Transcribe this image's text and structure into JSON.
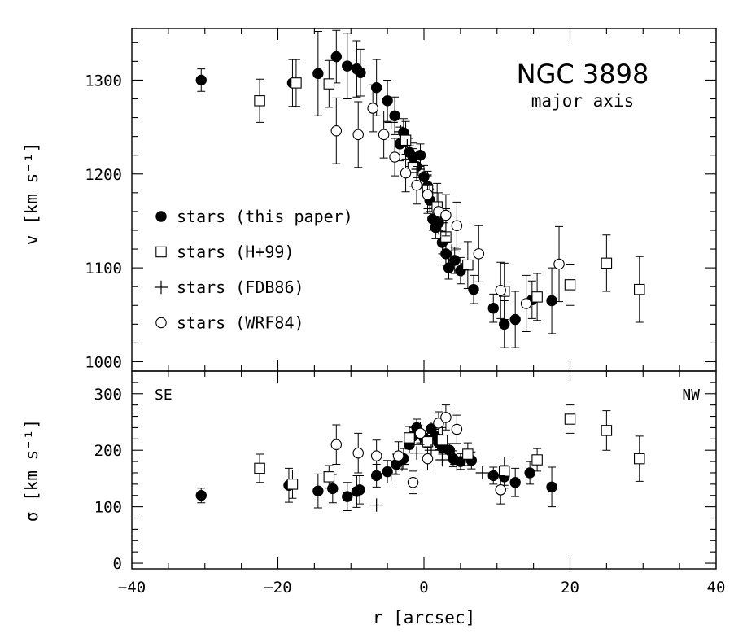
{
  "chart_data": [
    {
      "id": "velocity",
      "type": "scatter",
      "title": "NGC 3898",
      "subtitle": "major axis",
      "ylabel": "v [km s⁻¹]",
      "xlabel": "",
      "xlim": [
        -40,
        40
      ],
      "ylim": [
        990,
        1355
      ],
      "yticks": [
        1000,
        1100,
        1200,
        1300
      ],
      "xticks": [
        -40,
        -20,
        0,
        20,
        40
      ],
      "series": [
        {
          "name": "stars (this paper)",
          "marker": "filled-circle",
          "points": [
            {
              "x": -30.5,
              "y": 1300,
              "err": 12
            },
            {
              "x": -18.0,
              "y": 1297,
              "err": 25
            },
            {
              "x": -14.5,
              "y": 1307,
              "err": 45
            },
            {
              "x": -12.0,
              "y": 1325,
              "err": 28
            },
            {
              "x": -10.5,
              "y": 1315,
              "err": 35
            },
            {
              "x": -9.2,
              "y": 1312,
              "err": 30
            },
            {
              "x": -8.7,
              "y": 1308,
              "err": 25
            },
            {
              "x": -6.5,
              "y": 1292,
              "err": 30
            },
            {
              "x": -5.0,
              "y": 1278,
              "err": 22
            },
            {
              "x": -4.0,
              "y": 1262,
              "err": 20
            },
            {
              "x": -3.3,
              "y": 1232,
              "err": 18
            },
            {
              "x": -2.8,
              "y": 1244,
              "err": 15
            },
            {
              "x": -2.0,
              "y": 1223,
              "err": 15
            },
            {
              "x": -1.5,
              "y": 1218,
              "err": 15
            },
            {
              "x": -1.0,
              "y": 1208,
              "err": 12
            },
            {
              "x": -0.5,
              "y": 1220,
              "err": 12
            },
            {
              "x": 0.0,
              "y": 1197,
              "err": 12
            },
            {
              "x": 0.5,
              "y": 1187,
              "err": 12
            },
            {
              "x": 0.8,
              "y": 1172,
              "err": 12
            },
            {
              "x": 1.2,
              "y": 1152,
              "err": 12
            },
            {
              "x": 1.6,
              "y": 1143,
              "err": 12
            },
            {
              "x": 2.0,
              "y": 1148,
              "err": 12
            },
            {
              "x": 2.5,
              "y": 1127,
              "err": 12
            },
            {
              "x": 3.0,
              "y": 1115,
              "err": 12
            },
            {
              "x": 3.4,
              "y": 1100,
              "err": 12
            },
            {
              "x": 4.2,
              "y": 1108,
              "err": 14
            },
            {
              "x": 5.0,
              "y": 1097,
              "err": 14
            },
            {
              "x": 6.8,
              "y": 1077,
              "err": 15
            },
            {
              "x": 9.5,
              "y": 1057,
              "err": 15
            },
            {
              "x": 11.0,
              "y": 1040,
              "err": 25
            },
            {
              "x": 12.5,
              "y": 1045,
              "err": 30
            },
            {
              "x": 14.8,
              "y": 1066,
              "err": 20
            },
            {
              "x": 17.5,
              "y": 1065,
              "err": 35
            }
          ]
        },
        {
          "name": "stars (H+99)",
          "marker": "open-square",
          "points": [
            {
              "x": -22.5,
              "y": 1278,
              "err": 23
            },
            {
              "x": -17.5,
              "y": 1297,
              "err": 25
            },
            {
              "x": -13.0,
              "y": 1296,
              "err": 25
            },
            {
              "x": -2.5,
              "y": 1236,
              "err": 20
            },
            {
              "x": -1.5,
              "y": 1207,
              "err": 20
            },
            {
              "x": 0.5,
              "y": 1183,
              "err": 20
            },
            {
              "x": 1.8,
              "y": 1165,
              "err": 25
            },
            {
              "x": 3.0,
              "y": 1133,
              "err": 30
            },
            {
              "x": 6.0,
              "y": 1103,
              "err": 25
            },
            {
              "x": 11.0,
              "y": 1075,
              "err": 30
            },
            {
              "x": 15.5,
              "y": 1069,
              "err": 25
            },
            {
              "x": 20.0,
              "y": 1082,
              "err": 22
            },
            {
              "x": 25.0,
              "y": 1105,
              "err": 30
            },
            {
              "x": 29.5,
              "y": 1077,
              "err": 35
            }
          ]
        },
        {
          "name": "stars (FDB86)",
          "marker": "plus",
          "points": [
            {
              "x": -4.5,
              "y": 1255,
              "err": 0
            },
            {
              "x": -3.2,
              "y": 1245,
              "err": 0
            },
            {
              "x": -2.3,
              "y": 1230,
              "err": 0
            },
            {
              "x": -0.8,
              "y": 1205,
              "err": 0
            },
            {
              "x": 0.8,
              "y": 1180,
              "err": 0
            },
            {
              "x": 2.3,
              "y": 1148,
              "err": 0
            },
            {
              "x": 3.8,
              "y": 1118,
              "err": 0
            },
            {
              "x": 5.2,
              "y": 1098,
              "err": 0
            }
          ]
        },
        {
          "name": "stars (WRF84)",
          "marker": "open-circle",
          "points": [
            {
              "x": -12.0,
              "y": 1246,
              "err": 35
            },
            {
              "x": -9.0,
              "y": 1242,
              "err": 35
            },
            {
              "x": -7.0,
              "y": 1270,
              "err": 25
            },
            {
              "x": -5.5,
              "y": 1242,
              "err": 25
            },
            {
              "x": -4.0,
              "y": 1218,
              "err": 20
            },
            {
              "x": -2.5,
              "y": 1201,
              "err": 20
            },
            {
              "x": -1.0,
              "y": 1188,
              "err": 20
            },
            {
              "x": 0.5,
              "y": 1178,
              "err": 20
            },
            {
              "x": 2.0,
              "y": 1160,
              "err": 20
            },
            {
              "x": 3.0,
              "y": 1156,
              "err": 22
            },
            {
              "x": 4.5,
              "y": 1145,
              "err": 25
            },
            {
              "x": 7.5,
              "y": 1115,
              "err": 30
            },
            {
              "x": 10.5,
              "y": 1076,
              "err": 30
            },
            {
              "x": 14.0,
              "y": 1062,
              "err": 30
            },
            {
              "x": 18.5,
              "y": 1104,
              "err": 40
            }
          ]
        }
      ]
    },
    {
      "id": "dispersion",
      "type": "scatter",
      "ylabel": "σ [km s⁻¹]",
      "xlabel": "r [arcsec]",
      "xlim": [
        -40,
        40
      ],
      "ylim": [
        -10,
        340
      ],
      "yticks": [
        0,
        100,
        200,
        300
      ],
      "xticks": [
        -40,
        -20,
        0,
        20,
        40
      ],
      "left_label": "SE",
      "right_label": "NW",
      "series": [
        {
          "name": "stars (this paper)",
          "marker": "filled-circle",
          "points": [
            {
              "x": -30.5,
              "y": 120,
              "err": 13
            },
            {
              "x": -18.5,
              "y": 138,
              "err": 30
            },
            {
              "x": -14.5,
              "y": 128,
              "err": 30
            },
            {
              "x": -12.5,
              "y": 132,
              "err": 25
            },
            {
              "x": -10.5,
              "y": 118,
              "err": 25
            },
            {
              "x": -9.2,
              "y": 127,
              "err": 28
            },
            {
              "x": -8.8,
              "y": 130,
              "err": 25
            },
            {
              "x": -6.5,
              "y": 155,
              "err": 20
            },
            {
              "x": -5.0,
              "y": 162,
              "err": 20
            },
            {
              "x": -3.8,
              "y": 175,
              "err": 18
            },
            {
              "x": -2.8,
              "y": 185,
              "err": 18
            },
            {
              "x": -2.0,
              "y": 210,
              "err": 15
            },
            {
              "x": -1.5,
              "y": 225,
              "err": 15
            },
            {
              "x": -1.0,
              "y": 240,
              "err": 15
            },
            {
              "x": -0.5,
              "y": 228,
              "err": 15
            },
            {
              "x": 0.0,
              "y": 222,
              "err": 12
            },
            {
              "x": 0.5,
              "y": 218,
              "err": 12
            },
            {
              "x": 1.0,
              "y": 238,
              "err": 12
            },
            {
              "x": 1.5,
              "y": 225,
              "err": 12
            },
            {
              "x": 2.0,
              "y": 213,
              "err": 12
            },
            {
              "x": 2.5,
              "y": 205,
              "err": 12
            },
            {
              "x": 3.5,
              "y": 200,
              "err": 12
            },
            {
              "x": 4.0,
              "y": 185,
              "err": 14
            },
            {
              "x": 5.0,
              "y": 180,
              "err": 14
            },
            {
              "x": 6.5,
              "y": 182,
              "err": 15
            },
            {
              "x": 9.5,
              "y": 155,
              "err": 15
            },
            {
              "x": 11.0,
              "y": 153,
              "err": 20
            },
            {
              "x": 12.5,
              "y": 143,
              "err": 25
            },
            {
              "x": 14.5,
              "y": 160,
              "err": 20
            },
            {
              "x": 17.5,
              "y": 135,
              "err": 35
            }
          ]
        },
        {
          "name": "stars (H+99)",
          "marker": "open-square",
          "points": [
            {
              "x": -22.5,
              "y": 168,
              "err": 25
            },
            {
              "x": -18.0,
              "y": 140,
              "err": 25
            },
            {
              "x": -13.0,
              "y": 153,
              "err": 20
            },
            {
              "x": -2.0,
              "y": 222,
              "err": 20
            },
            {
              "x": 0.5,
              "y": 215,
              "err": 20
            },
            {
              "x": 2.5,
              "y": 218,
              "err": 22
            },
            {
              "x": 6.0,
              "y": 193,
              "err": 20
            },
            {
              "x": 11.0,
              "y": 163,
              "err": 25
            },
            {
              "x": 15.5,
              "y": 183,
              "err": 20
            },
            {
              "x": 20.0,
              "y": 255,
              "err": 25
            },
            {
              "x": 25.0,
              "y": 235,
              "err": 35
            },
            {
              "x": 29.5,
              "y": 185,
              "err": 40
            }
          ]
        },
        {
          "name": "stars (FDB86)",
          "marker": "plus",
          "points": [
            {
              "x": -6.5,
              "y": 103,
              "err": 0
            },
            {
              "x": -4.5,
              "y": 158,
              "err": 0
            },
            {
              "x": -3.0,
              "y": 175,
              "err": 0
            },
            {
              "x": -1.0,
              "y": 195,
              "err": 0
            },
            {
              "x": 1.0,
              "y": 200,
              "err": 0
            },
            {
              "x": 2.5,
              "y": 183,
              "err": 0
            },
            {
              "x": 4.5,
              "y": 175,
              "err": 0
            },
            {
              "x": 8.0,
              "y": 160,
              "err": 0
            }
          ]
        },
        {
          "name": "stars (WRF84)",
          "marker": "open-circle",
          "points": [
            {
              "x": -12.0,
              "y": 210,
              "err": 35
            },
            {
              "x": -9.0,
              "y": 195,
              "err": 35
            },
            {
              "x": -6.5,
              "y": 190,
              "err": 28
            },
            {
              "x": -3.5,
              "y": 190,
              "err": 25
            },
            {
              "x": -1.5,
              "y": 143,
              "err": 20
            },
            {
              "x": -0.5,
              "y": 230,
              "err": 20
            },
            {
              "x": 0.5,
              "y": 185,
              "err": 20
            },
            {
              "x": 2.0,
              "y": 248,
              "err": 20
            },
            {
              "x": 3.0,
              "y": 258,
              "err": 22
            },
            {
              "x": 4.5,
              "y": 237,
              "err": 25
            },
            {
              "x": 10.5,
              "y": 130,
              "err": 25
            }
          ]
        }
      ]
    }
  ]
}
